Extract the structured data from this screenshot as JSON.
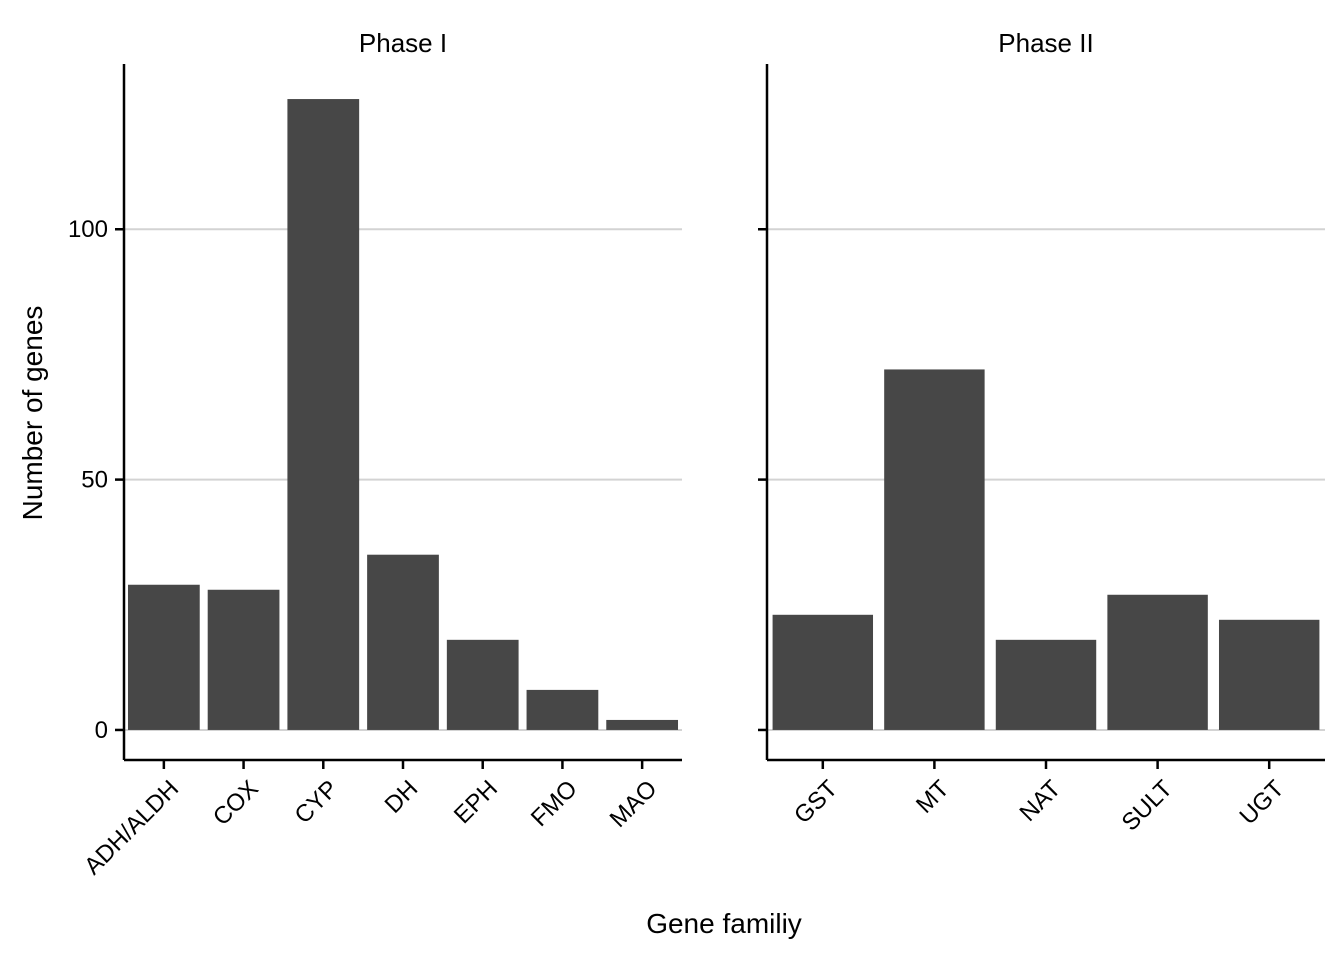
{
  "chart_data": {
    "type": "bar",
    "xlabel": "Gene familiy",
    "ylabel": "Number of genes",
    "ylim": [
      -6,
      133
    ],
    "yticks": [
      0,
      50,
      100
    ],
    "grid": "horizontal",
    "bar_color": "#474747",
    "grid_color": "#d3d3d3",
    "facets": [
      {
        "title": "Phase I",
        "categories": [
          "ADH/ALDH",
          "COX",
          "CYP",
          "DH",
          "EPH",
          "FMO",
          "MAO"
        ],
        "values": [
          29,
          28,
          126,
          35,
          18,
          8,
          2
        ]
      },
      {
        "title": "Phase II",
        "categories": [
          "GST",
          "MT",
          "NAT",
          "SULT",
          "UGT"
        ],
        "values": [
          23,
          72,
          18,
          27,
          22
        ]
      }
    ]
  }
}
